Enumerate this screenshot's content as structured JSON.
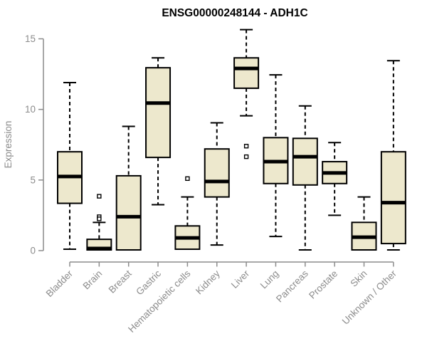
{
  "chart_data": {
    "type": "boxplot",
    "title": "ENSG00000248144 - ADH1C",
    "xlabel": "",
    "ylabel": "Expression",
    "ylim": [
      0,
      15
    ],
    "yticks": [
      0,
      5,
      10,
      15
    ],
    "grid": false,
    "legend": false,
    "categories": [
      "Bladder",
      "Brain",
      "Breast",
      "Gastric",
      "Hematopoietic cells",
      "Kidney",
      "Liver",
      "Lung",
      "Pancreas",
      "Prostate",
      "Skin",
      "Unknown / Other"
    ],
    "series": [
      {
        "category": "Bladder",
        "min": 0.1,
        "q1": 3.35,
        "median": 5.25,
        "q3": 7.0,
        "max": 11.9,
        "outliers": []
      },
      {
        "category": "Brain",
        "min": 0.0,
        "q1": 0.05,
        "median": 0.15,
        "q3": 0.8,
        "max": 2.0,
        "outliers": [
          3.85,
          2.4,
          2.25
        ]
      },
      {
        "category": "Breast",
        "min": 0.0,
        "q1": 0.05,
        "median": 2.4,
        "q3": 5.3,
        "max": 8.8,
        "outliers": []
      },
      {
        "category": "Gastric",
        "min": 3.25,
        "q1": 6.6,
        "median": 10.45,
        "q3": 12.95,
        "max": 13.65,
        "outliers": []
      },
      {
        "category": "Hematopoietic cells",
        "min": 0.0,
        "q1": 0.1,
        "median": 0.9,
        "q3": 1.75,
        "max": 3.8,
        "outliers": [
          5.1
        ]
      },
      {
        "category": "Kidney",
        "min": 0.4,
        "q1": 3.8,
        "median": 4.9,
        "q3": 7.2,
        "max": 9.05,
        "outliers": []
      },
      {
        "category": "Liver",
        "min": 9.55,
        "q1": 11.5,
        "median": 12.9,
        "q3": 13.65,
        "max": 15.65,
        "outliers": [
          7.4,
          6.65
        ]
      },
      {
        "category": "Lung",
        "min": 1.0,
        "q1": 4.75,
        "median": 6.3,
        "q3": 8.0,
        "max": 12.45,
        "outliers": []
      },
      {
        "category": "Pancreas",
        "min": 0.05,
        "q1": 4.65,
        "median": 6.65,
        "q3": 7.95,
        "max": 10.25,
        "outliers": []
      },
      {
        "category": "Prostate",
        "min": 2.5,
        "q1": 4.75,
        "median": 5.5,
        "q3": 6.3,
        "max": 7.65,
        "outliers": []
      },
      {
        "category": "Skin",
        "min": 0.0,
        "q1": 0.05,
        "median": 0.95,
        "q3": 2.0,
        "max": 3.8,
        "outliers": []
      },
      {
        "category": "Unknown / Other",
        "min": 0.05,
        "q1": 0.5,
        "median": 3.4,
        "q3": 7.0,
        "max": 13.45,
        "outliers": []
      }
    ],
    "colors": {
      "box_fill": "#EDE8CD",
      "box_border": "#000000",
      "median": "#000000",
      "whisker": "#000000",
      "outlier_border": "#000000",
      "outlier_fill": "#FFFFFF",
      "axis": "#8C8C8C",
      "tick_label": "#8C8C8C",
      "title": "#000000",
      "background": "#FFFFFF"
    }
  }
}
